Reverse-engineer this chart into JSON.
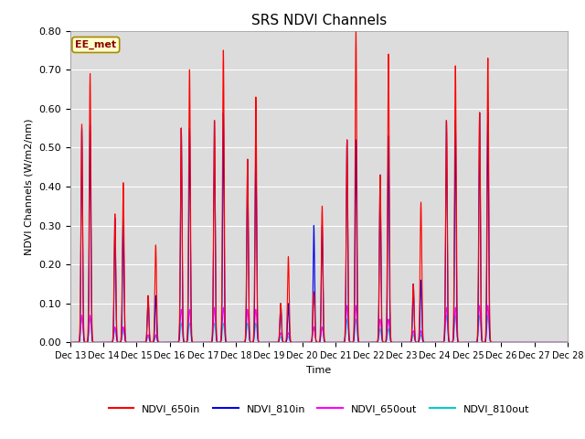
{
  "title": "SRS NDVI Channels",
  "xlabel": "Time",
  "ylabel": "NDVI Channels (W/m2/nm)",
  "annotation": "EE_met",
  "ylim": [
    0.0,
    0.8
  ],
  "yticks": [
    0.0,
    0.1,
    0.2,
    0.3,
    0.4,
    0.5,
    0.6,
    0.7,
    0.8
  ],
  "xtick_labels": [
    "Dec 13",
    "Dec 14",
    "Dec 15",
    "Dec 16",
    "Dec 17",
    "Dec 18",
    "Dec 19",
    "Dec 20",
    "Dec 21",
    "Dec 22",
    "Dec 23",
    "Dec 24",
    "Dec 25",
    "Dec 26",
    "Dec 27",
    "Dec 28"
  ],
  "colors": {
    "NDVI_650in": "#FF0000",
    "NDVI_810in": "#0000EE",
    "NDVI_650out": "#FF00FF",
    "NDVI_810out": "#00CCCC"
  },
  "background_color": "#DCDCDC",
  "title_fontsize": 11,
  "spikes": [
    {
      "day": 0.35,
      "p650in": 0.56,
      "p810in": 0.55,
      "p650out": 0.07,
      "p810out": 0.065
    },
    {
      "day": 0.6,
      "p650in": 0.69,
      "p810in": 0.56,
      "p650out": 0.07,
      "p810out": 0.065
    },
    {
      "day": 1.35,
      "p650in": 0.33,
      "p810in": 0.32,
      "p650out": 0.04,
      "p810out": 0.035
    },
    {
      "day": 1.6,
      "p650in": 0.41,
      "p810in": 0.32,
      "p650out": 0.04,
      "p810out": 0.035
    },
    {
      "day": 2.35,
      "p650in": 0.12,
      "p810in": 0.12,
      "p650out": 0.02,
      "p810out": 0.015
    },
    {
      "day": 2.58,
      "p650in": 0.25,
      "p810in": 0.12,
      "p650out": 0.02,
      "p810out": 0.015
    },
    {
      "day": 3.35,
      "p650in": 0.55,
      "p810in": 0.55,
      "p650out": 0.085,
      "p810out": 0.05
    },
    {
      "day": 3.6,
      "p650in": 0.7,
      "p810in": 0.55,
      "p650out": 0.085,
      "p810out": 0.05
    },
    {
      "day": 4.35,
      "p650in": 0.57,
      "p810in": 0.57,
      "p650out": 0.09,
      "p810out": 0.05
    },
    {
      "day": 4.62,
      "p650in": 0.75,
      "p810in": 0.59,
      "p650out": 0.09,
      "p810out": 0.05
    },
    {
      "day": 5.35,
      "p650in": 0.47,
      "p810in": 0.47,
      "p650out": 0.085,
      "p810out": 0.05
    },
    {
      "day": 5.6,
      "p650in": 0.63,
      "p810in": 0.51,
      "p650out": 0.085,
      "p810out": 0.05
    },
    {
      "day": 6.35,
      "p650in": 0.1,
      "p810in": 0.1,
      "p650out": 0.025,
      "p810out": 0.015
    },
    {
      "day": 6.58,
      "p650in": 0.22,
      "p810in": 0.1,
      "p650out": 0.025,
      "p810out": 0.015
    },
    {
      "day": 7.35,
      "p650in": 0.13,
      "p810in": 0.3,
      "p650out": 0.04,
      "p810out": 0.04
    },
    {
      "day": 7.6,
      "p650in": 0.35,
      "p810in": 0.3,
      "p650out": 0.04,
      "p810out": 0.04
    },
    {
      "day": 8.35,
      "p650in": 0.52,
      "p810in": 0.52,
      "p650out": 0.095,
      "p810out": 0.06
    },
    {
      "day": 8.62,
      "p650in": 0.8,
      "p810in": 0.52,
      "p650out": 0.095,
      "p810out": 0.06
    },
    {
      "day": 9.35,
      "p650in": 0.43,
      "p810in": 0.43,
      "p650out": 0.06,
      "p810out": 0.035
    },
    {
      "day": 9.6,
      "p650in": 0.74,
      "p810in": 0.53,
      "p650out": 0.06,
      "p810out": 0.035
    },
    {
      "day": 10.35,
      "p650in": 0.15,
      "p810in": 0.15,
      "p650out": 0.03,
      "p810out": 0.02
    },
    {
      "day": 10.58,
      "p650in": 0.36,
      "p810in": 0.16,
      "p650out": 0.03,
      "p810out": 0.02
    },
    {
      "day": 11.35,
      "p650in": 0.57,
      "p810in": 0.57,
      "p650out": 0.09,
      "p810out": 0.07
    },
    {
      "day": 11.62,
      "p650in": 0.71,
      "p810in": 0.57,
      "p650out": 0.09,
      "p810out": 0.07
    },
    {
      "day": 12.35,
      "p650in": 0.59,
      "p810in": 0.59,
      "p650out": 0.095,
      "p810out": 0.07
    },
    {
      "day": 12.6,
      "p650in": 0.73,
      "p810in": 0.59,
      "p650out": 0.095,
      "p810out": 0.07
    }
  ]
}
